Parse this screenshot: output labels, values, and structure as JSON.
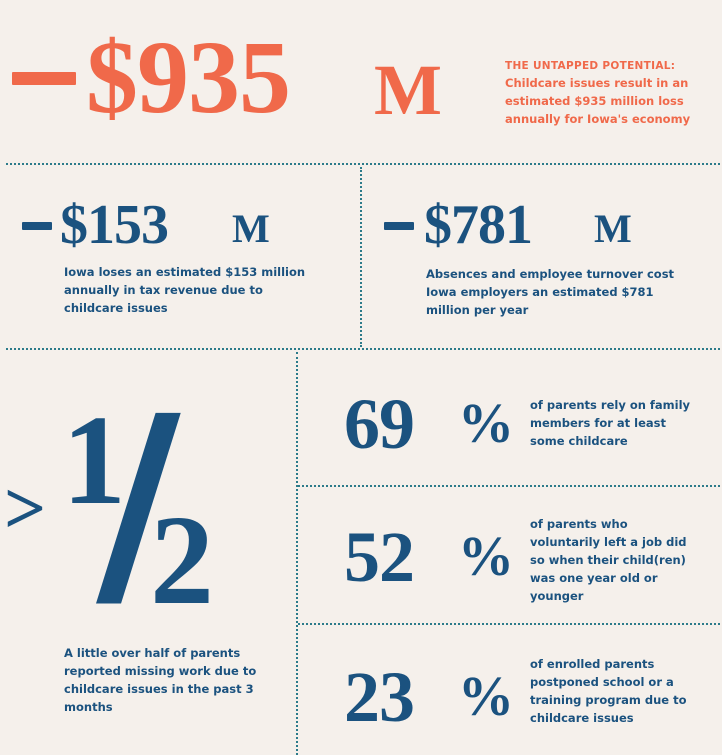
{
  "hero": {
    "value": "$935",
    "unit": "M",
    "heading": "THE UNTAPPED POTENTIAL:",
    "description": "Childcare issues result in an estimated $935 million loss annually for Iowa's economy"
  },
  "tax_stat": {
    "value": "$153",
    "unit": "M",
    "description": "Iowa loses an estimated $153 million annually in tax revenue due to childcare issues"
  },
  "employer_stat": {
    "value": "$781",
    "unit": "M",
    "description": "Absences and employee turnover cost Iowa employers an estimated $781 million per year"
  },
  "half_stat": {
    "prefix": ">",
    "numerator": "1",
    "slash": "/",
    "denominator": "2",
    "description": "A little over half of parents reported missing work due to childcare issues in the past 3 months"
  },
  "percent_stats": [
    {
      "value": "69",
      "unit": "%",
      "description": "of parents rely on family members for at least some childcare"
    },
    {
      "value": "52",
      "unit": "%",
      "description": "of parents who voluntarily left a job did so when their child(ren) was one year old or younger"
    },
    {
      "value": "23",
      "unit": "%",
      "description": "of enrolled parents postponed school or a training program due to childcare issues"
    }
  ],
  "colors": {
    "background": "#f5f0eb",
    "accent_orange": "#f0694a",
    "primary_blue": "#1b527f",
    "divider_teal": "#2c7b8a"
  }
}
